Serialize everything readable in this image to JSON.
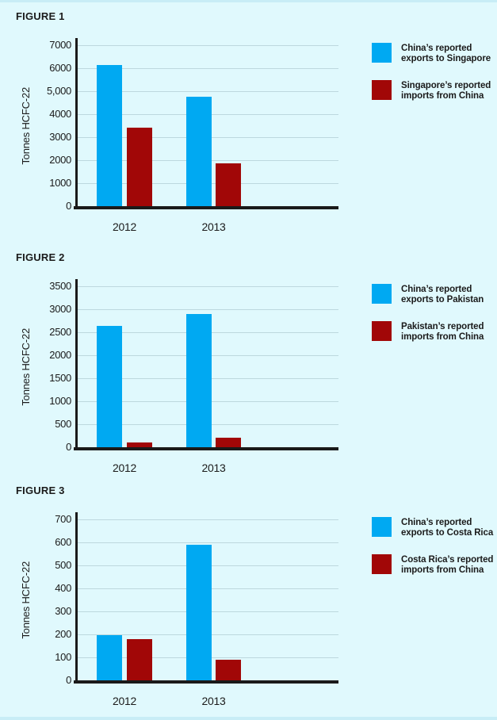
{
  "page": {
    "background_color": "#e0f9fd",
    "edge_strip_color": "#c8edf6",
    "text_color": "#1b1b1b"
  },
  "colors": {
    "export_blue": "#00a9f2",
    "import_red": "#a10707",
    "gridline": "#bdd8de",
    "axis": "#1a1a1a"
  },
  "chart_data": [
    {
      "type": "bar",
      "figure_label": "FIGURE 1",
      "ylabel": "Tonnes HCFC-22",
      "categories": [
        "2012",
        "2013"
      ],
      "ylim": [
        0,
        7000
      ],
      "ytick_labels": [
        "0",
        "1000",
        "2000",
        "3000",
        "4000",
        "5,000",
        "6000",
        "7000"
      ],
      "grid": true,
      "legend_position": "right",
      "series": [
        {
          "name": "China's reported exports to Singapore",
          "legend_lines": [
            "China’s reported",
            "exports to Singapore"
          ],
          "color_key": "export_blue",
          "values": [
            6150,
            4750
          ]
        },
        {
          "name": "Singapore's reported imports from China",
          "legend_lines": [
            "Singapore’s reported",
            "imports from China"
          ],
          "color_key": "import_red",
          "values": [
            3400,
            1850
          ]
        }
      ]
    },
    {
      "type": "bar",
      "figure_label": "FIGURE 2",
      "ylabel": "Tonnes HCFC-22",
      "categories": [
        "2012",
        "2013"
      ],
      "ylim": [
        0,
        3500
      ],
      "ytick_labels": [
        "0",
        "500",
        "1000",
        "1500",
        "2000",
        "2500",
        "3000",
        "3500"
      ],
      "grid": true,
      "legend_position": "right",
      "series": [
        {
          "name": "China's reported exports to Pakistan",
          "legend_lines": [
            "China’s reported",
            "exports to Pakistan"
          ],
          "color_key": "export_blue",
          "values": [
            2640,
            2900
          ]
        },
        {
          "name": "Pakistan's reported imports from China",
          "legend_lines": [
            "Pakistan’s reported",
            "imports from China"
          ],
          "color_key": "import_red",
          "values": [
            110,
            210
          ]
        }
      ]
    },
    {
      "type": "bar",
      "figure_label": "FIGURE 3",
      "ylabel": "Tonnes HCFC-22",
      "categories": [
        "2012",
        "2013"
      ],
      "ylim": [
        0,
        700
      ],
      "ytick_labels": [
        "0",
        "100",
        "200",
        "300",
        "400",
        "500",
        "600",
        "700"
      ],
      "grid": true,
      "legend_position": "right",
      "series": [
        {
          "name": "China's reported exports to Costa Rica",
          "legend_lines": [
            "China’s reported",
            "exports to Costa Rica"
          ],
          "color_key": "export_blue",
          "values": [
            195,
            590
          ]
        },
        {
          "name": "Costa Rica's reported imports from China",
          "legend_lines": [
            "Costa Rica’s reported",
            "imports from China"
          ],
          "color_key": "import_red",
          "values": [
            180,
            88
          ]
        }
      ]
    }
  ]
}
